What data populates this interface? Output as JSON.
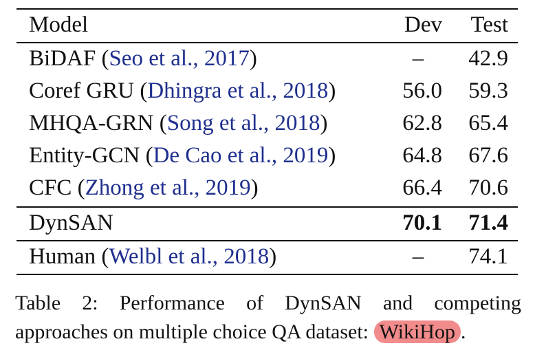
{
  "table": {
    "headers": {
      "model": "Model",
      "dev": "Dev",
      "test": "Test"
    },
    "rows": [
      {
        "name": "BiDAF",
        "open": " (",
        "cite": "Seo et al., 2017",
        "close": ")",
        "dev": "–",
        "test": "42.9"
      },
      {
        "name": "Coref GRU",
        "open": " (",
        "cite": "Dhingra et al., 2018",
        "close": ")",
        "dev": "56.0",
        "test": "59.3"
      },
      {
        "name": "MHQA-GRN",
        "open": " (",
        "cite": "Song et al., 2018",
        "close": ")",
        "dev": "62.8",
        "test": "65.4"
      },
      {
        "name": "Entity-GCN",
        "open": " (",
        "cite": "De Cao et al., 2019",
        "close": ")",
        "dev": "64.8",
        "test": "67.6"
      },
      {
        "name": "CFC",
        "open": " (",
        "cite": "Zhong et al., 2019",
        "close": ")",
        "dev": "66.4",
        "test": "70.6"
      }
    ],
    "ours": {
      "name": "DynSAN",
      "dev": "70.1",
      "test": "71.4"
    },
    "human": {
      "name": "Human",
      "open": " (",
      "cite": "Welbl et al., 2018",
      "close": ")",
      "dev": "–",
      "test": "74.1"
    }
  },
  "caption": {
    "text": "Table 2: Performance of DynSAN and competing approaches on multiple choice QA dataset: ",
    "highlight": "WikiHop",
    "end": "."
  }
}
